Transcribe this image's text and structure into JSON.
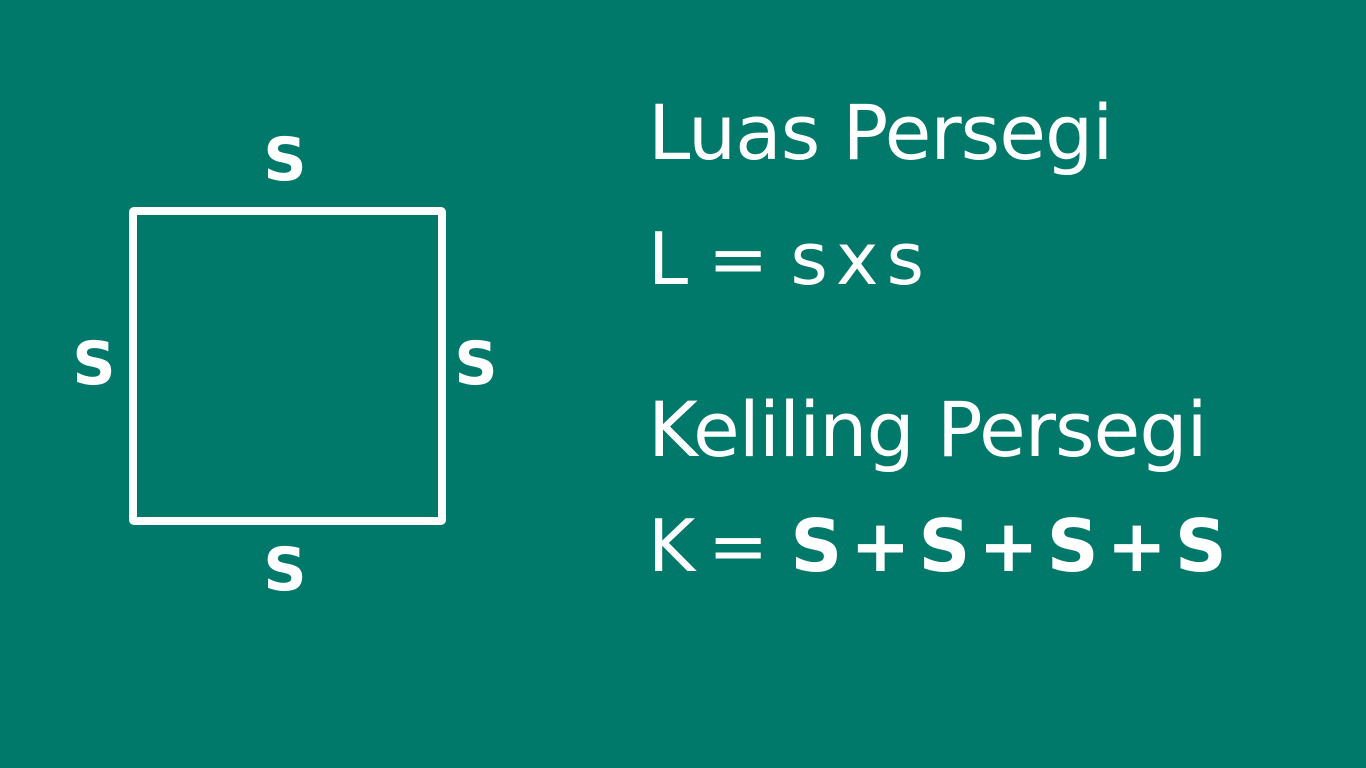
{
  "diagram": {
    "side_labels": {
      "top": "S",
      "left": "S",
      "right": "S",
      "bottom": "S"
    }
  },
  "luas": {
    "heading": "Luas Persegi",
    "variable": "L",
    "equals": "=",
    "terms": [
      "s",
      "s"
    ],
    "operator": "x"
  },
  "keliling": {
    "heading": "Keliling Persegi",
    "variable": "K",
    "equals": "=",
    "terms": [
      "S",
      "S",
      "S",
      "S"
    ],
    "operator": "+"
  },
  "colors": {
    "background": "#00786a",
    "foreground": "#ffffff"
  }
}
